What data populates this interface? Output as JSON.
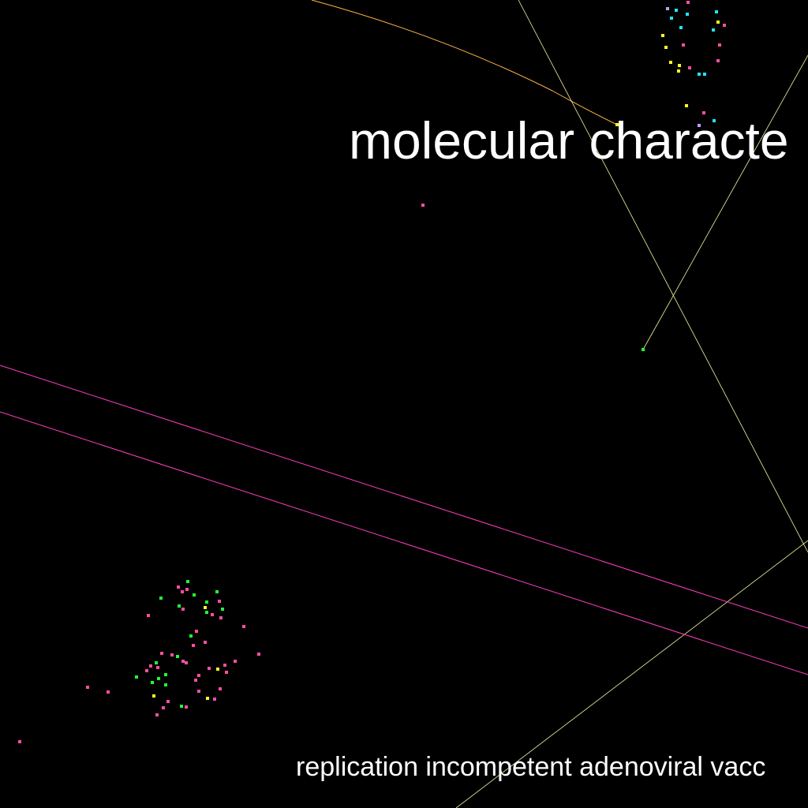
{
  "texts": {
    "heading": "molecular characte",
    "footer": "replication incompetent adenoviral vacc"
  },
  "colors": {
    "background": "#000000",
    "text": "#ffffff",
    "magenta": "#ff3fbf",
    "pink": "#ff4fa0",
    "green": "#22ff33",
    "yellow": "#ffff22",
    "cyan": "#22e5ff",
    "lavender": "#b9a0ff",
    "orange_line": "#ffb347",
    "pale_line": "#f5f5a0"
  }
}
